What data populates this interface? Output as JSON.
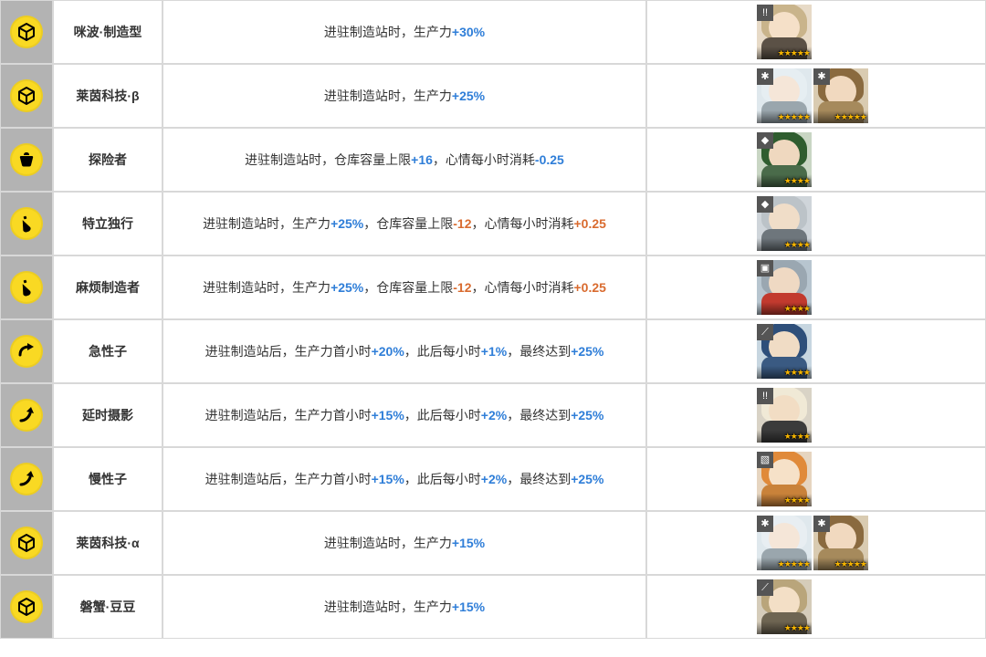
{
  "colors": {
    "icon_cell_bg": "#B3B3B3",
    "border": "#d8d8d8",
    "plus": "#2f7ed8",
    "minus": "#d96b2f",
    "star": "#f7b500"
  },
  "icon_glyphs": {
    "cube": {
      "bg": "#f9d923",
      "shape": "cube"
    },
    "bag": {
      "bg": "#f9d923",
      "shape": "bag"
    },
    "bottle": {
      "bg": "#f9d923",
      "shape": "bottle"
    },
    "arrow_r": {
      "bg": "#f9d923",
      "shape": "arrow_r"
    },
    "arrow_u": {
      "bg": "#f9d923",
      "shape": "arrow_u"
    }
  },
  "rows": [
    {
      "icon": "cube",
      "name": "咪波·制造型",
      "desc": [
        {
          "t": "进驻制造站时，生产力"
        },
        {
          "t": "+30%",
          "c": "plus"
        }
      ],
      "ops": [
        {
          "corner": "!!",
          "stars": 5,
          "bg": "#e7dac7",
          "hair": "#c9b48b",
          "skin": "#f5e0c8",
          "body": "#5b5146"
        }
      ]
    },
    {
      "icon": "cube",
      "name": "莱茵科技·β",
      "desc": [
        {
          "t": "进驻制造站时，生产力"
        },
        {
          "t": "+25%",
          "c": "plus"
        }
      ],
      "ops": [
        {
          "corner": "✱",
          "stars": 5,
          "bg": "#dfe8ed",
          "hair": "#e6eef2",
          "skin": "#f5e6d8",
          "body": "#9aa6ad"
        },
        {
          "corner": "✱",
          "stars": 5,
          "bg": "#d9cbb1",
          "hair": "#8a6a3f",
          "skin": "#f1d9bf",
          "body": "#a68a5c"
        }
      ]
    },
    {
      "icon": "bag",
      "name": "探险者",
      "desc": [
        {
          "t": "进驻制造站时，仓库容量上限"
        },
        {
          "t": "+16",
          "c": "plus"
        },
        {
          "t": "，心情每小时消耗"
        },
        {
          "t": "-0.25",
          "c": "plus"
        }
      ],
      "ops": [
        {
          "corner": "◆",
          "stars": 4,
          "bg": "#c9d6c4",
          "hair": "#2f5d2f",
          "skin": "#efd8bf",
          "body": "#4a6b4a"
        }
      ]
    },
    {
      "icon": "bottle",
      "name": "特立独行",
      "desc": [
        {
          "t": "进驻制造站时，生产力"
        },
        {
          "t": "+25%",
          "c": "plus"
        },
        {
          "t": "，仓库容量上限"
        },
        {
          "t": "-12",
          "c": "minus"
        },
        {
          "t": "，心情每小时消耗"
        },
        {
          "t": "+0.25",
          "c": "minus"
        }
      ],
      "ops": [
        {
          "corner": "◆",
          "stars": 4,
          "bg": "#cfd5da",
          "hair": "#bcc3c8",
          "skin": "#f0ddc8",
          "body": "#6e767c"
        }
      ]
    },
    {
      "icon": "bottle",
      "name": "麻烦制造者",
      "desc": [
        {
          "t": "进驻制造站时，生产力"
        },
        {
          "t": "+25%",
          "c": "plus"
        },
        {
          "t": "，仓库容量上限"
        },
        {
          "t": "-12",
          "c": "minus"
        },
        {
          "t": "，心情每小时消耗"
        },
        {
          "t": "+0.25",
          "c": "minus"
        }
      ],
      "ops": [
        {
          "corner": "▣",
          "stars": 4,
          "bg": "#b7c5cf",
          "hair": "#9aa7b1",
          "skin": "#efd9c3",
          "body": "#c23a2e"
        }
      ]
    },
    {
      "icon": "arrow_r",
      "name": "急性子",
      "desc": [
        {
          "t": "进驻制造站后，生产力首小时"
        },
        {
          "t": "+20%",
          "c": "plus"
        },
        {
          "t": "，此后每小时"
        },
        {
          "t": "+1%",
          "c": "plus"
        },
        {
          "t": "，最终达到"
        },
        {
          "t": "+25%",
          "c": "plus"
        }
      ],
      "ops": [
        {
          "corner": "⟋",
          "stars": 4,
          "bg": "#c7d6e0",
          "hair": "#2e4f7a",
          "skin": "#f0dcc5",
          "body": "#3a5a82"
        }
      ]
    },
    {
      "icon": "arrow_u",
      "name": "延时摄影",
      "desc": [
        {
          "t": "进驻制造站后，生产力首小时"
        },
        {
          "t": "+15%",
          "c": "plus"
        },
        {
          "t": "，此后每小时"
        },
        {
          "t": "+2%",
          "c": "plus"
        },
        {
          "t": "，最终达到"
        },
        {
          "t": "+25%",
          "c": "plus"
        }
      ],
      "ops": [
        {
          "corner": "!!",
          "stars": 4,
          "bg": "#d9d3c6",
          "hair": "#f0e9d6",
          "skin": "#f2ddc4",
          "body": "#3b3b3b"
        }
      ]
    },
    {
      "icon": "arrow_u",
      "name": "慢性子",
      "desc": [
        {
          "t": "进驻制造站后，生产力首小时"
        },
        {
          "t": "+15%",
          "c": "plus"
        },
        {
          "t": "，此后每小时"
        },
        {
          "t": "+2%",
          "c": "plus"
        },
        {
          "t": "，最终达到"
        },
        {
          "t": "+25%",
          "c": "plus"
        }
      ],
      "ops": [
        {
          "corner": "▧",
          "stars": 4,
          "bg": "#e6d5c0",
          "hair": "#e08a3a",
          "skin": "#f6e1c8",
          "body": "#c9823a"
        }
      ]
    },
    {
      "icon": "cube",
      "name": "莱茵科技·α",
      "desc": [
        {
          "t": "进驻制造站时，生产力"
        },
        {
          "t": "+15%",
          "c": "plus"
        }
      ],
      "ops": [
        {
          "corner": "✱",
          "stars": 5,
          "bg": "#dfe8ed",
          "hair": "#e8eef2",
          "skin": "#f5e6d8",
          "body": "#9aa6ad"
        },
        {
          "corner": "✱",
          "stars": 5,
          "bg": "#d9cbb1",
          "hair": "#8a6a3f",
          "skin": "#f1d9bf",
          "body": "#a68a5c"
        }
      ]
    },
    {
      "icon": "cube",
      "name": "磐蟹·豆豆",
      "desc": [
        {
          "t": "进驻制造站时，生产力"
        },
        {
          "t": "+15%",
          "c": "plus"
        }
      ],
      "ops": [
        {
          "corner": "⟋",
          "stars": 4,
          "bg": "#d5ccba",
          "hair": "#b9a57b",
          "skin": "#f3dfc6",
          "body": "#6e6552"
        }
      ]
    }
  ]
}
